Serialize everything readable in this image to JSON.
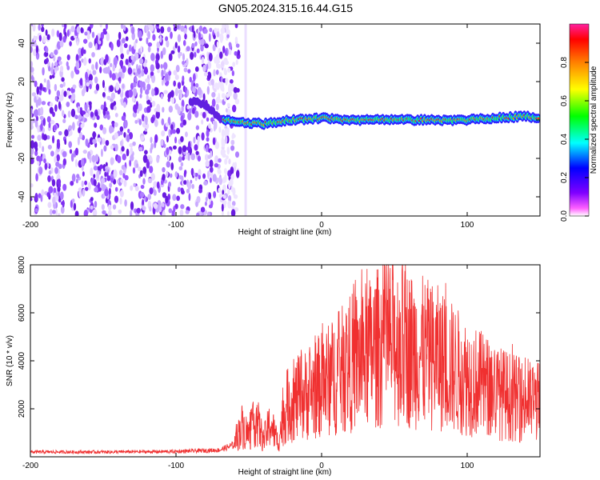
{
  "figure_title": "GN05.2024.315.16.44.G15",
  "chart_data": [
    {
      "type": "heatmap",
      "title": "GN05.2024.315.16.44.G15",
      "xlabel": "Height of straight line (km)",
      "ylabel": "Frequency (Hz)",
      "xlim": [
        -200,
        150
      ],
      "ylim": [
        -50,
        50
      ],
      "xticks": [
        -200,
        -100,
        0,
        100
      ],
      "yticks": [
        -40,
        -20,
        0,
        20,
        40
      ],
      "grid": false,
      "noise_region_x": [
        -200,
        -68
      ],
      "signal_ridge": {
        "x": [
          -90,
          -80,
          -70,
          -60,
          -40,
          -20,
          0,
          20,
          40,
          60,
          80,
          100,
          120,
          140,
          150
        ],
        "y": [
          10,
          8,
          1,
          -1,
          -2,
          0,
          1,
          0,
          0,
          0,
          0,
          0,
          1,
          2,
          1
        ]
      },
      "colorbar": {
        "label": "Normalized spectral amplitude",
        "range": [
          0,
          1
        ],
        "ticks": [
          0.0,
          0.2,
          0.4,
          0.6,
          0.8
        ],
        "colors": [
          "#ffffff",
          "#ff00ff",
          "#8000ff",
          "#0000ff",
          "#00ffff",
          "#00ff00",
          "#ffff00",
          "#ff8000",
          "#ff0000"
        ]
      }
    },
    {
      "type": "line",
      "xlabel": "Height of straight line (km)",
      "ylabel": "SNR (10 * v/v)",
      "xlim": [
        -200,
        150
      ],
      "ylim": [
        0,
        8000
      ],
      "xticks": [
        -200,
        -100,
        0,
        100
      ],
      "yticks": [
        2000,
        4000,
        6000,
        8000
      ],
      "grid": false,
      "color": "#f03030",
      "series": [
        {
          "x": [
            -200,
            -150,
            -100,
            -70,
            -60,
            -55,
            -50,
            -45,
            -40,
            -35,
            -30,
            -25,
            -20,
            -10,
            0,
            10,
            20,
            30,
            40,
            50,
            60,
            70,
            80,
            90,
            100,
            110,
            120,
            130,
            140,
            150
          ],
          "y": [
            200,
            200,
            220,
            280,
            500,
            1300,
            900,
            1600,
            700,
            1400,
            600,
            2000,
            2300,
            2600,
            3000,
            3400,
            3900,
            4200,
            4600,
            4800,
            4500,
            4300,
            4100,
            3700,
            3300,
            3000,
            2700,
            2500,
            2300,
            2300
          ]
        }
      ]
    }
  ]
}
